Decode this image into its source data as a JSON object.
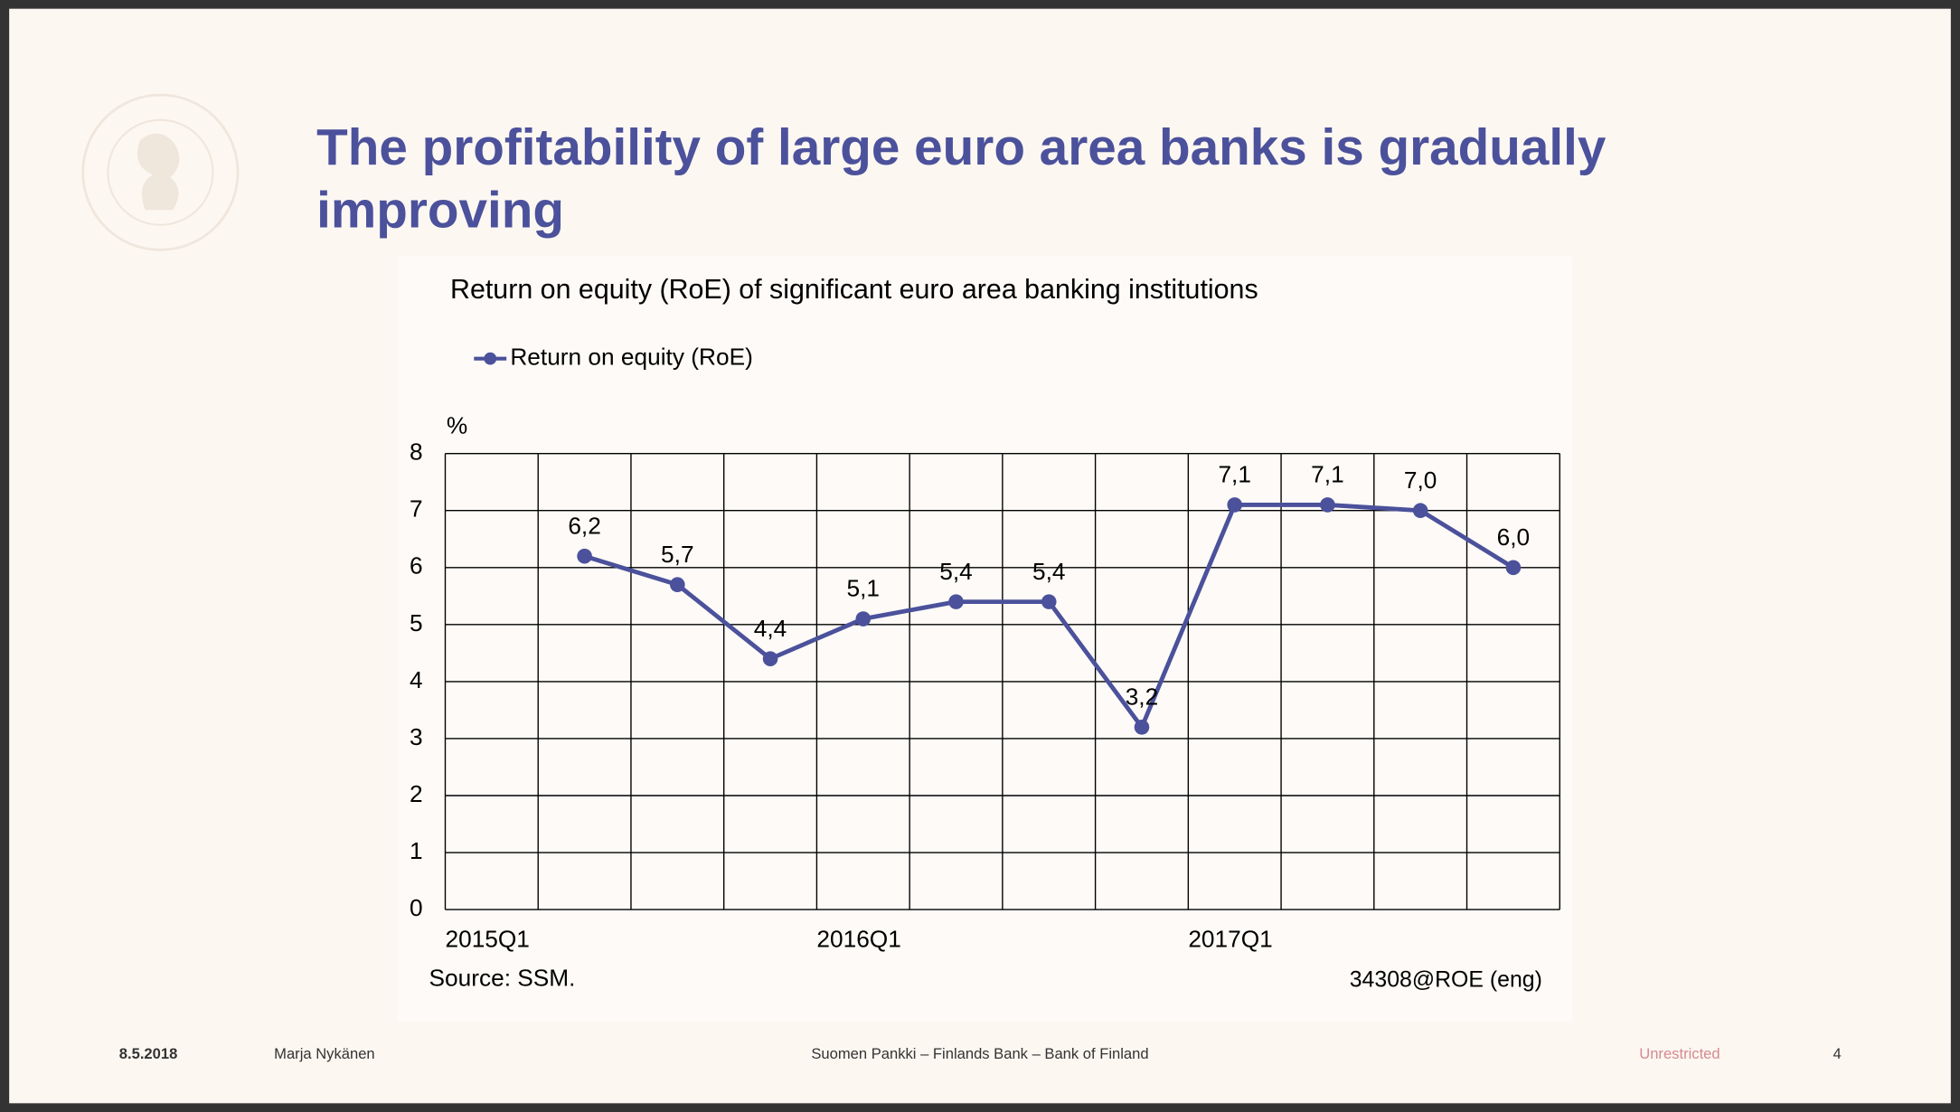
{
  "header": {
    "title_line1": "The profitability of large euro area banks is gradually",
    "title_line2": "improving"
  },
  "chart_data": {
    "type": "line",
    "title": "Return on equity (RoE) of significant euro area banking institutions",
    "y_unit": "%",
    "categories": [
      "2015Q1",
      null,
      null,
      null,
      "2016Q1",
      null,
      null,
      null,
      "2017Q1",
      null,
      null,
      null
    ],
    "series": [
      {
        "name": "Return on equity (RoE)",
        "color": "#4b519b",
        "values": [
          null,
          6.2,
          5.7,
          4.4,
          5.1,
          5.4,
          5.4,
          3.2,
          7.1,
          7.1,
          7.0,
          6.0
        ],
        "value_labels": [
          null,
          "6,2",
          "5,7",
          "4,4",
          "5,1",
          "5,4",
          "5,4",
          "3,2",
          "7,1",
          "7,1",
          "7,0",
          "6,0"
        ]
      }
    ],
    "ylim": [
      0,
      8
    ],
    "yticks": [
      0,
      1,
      2,
      3,
      4,
      5,
      6,
      7,
      8
    ],
    "grid": true,
    "legend": "top-left",
    "source": "Source: SSM.",
    "code": "34308@ROE (eng)"
  },
  "footer": {
    "date": "8.5.2018",
    "author": "Marja Nykänen",
    "organization": "Suomen Pankki – Finlands Bank – Bank of Finland",
    "classification": "Unrestricted",
    "page": "4"
  }
}
